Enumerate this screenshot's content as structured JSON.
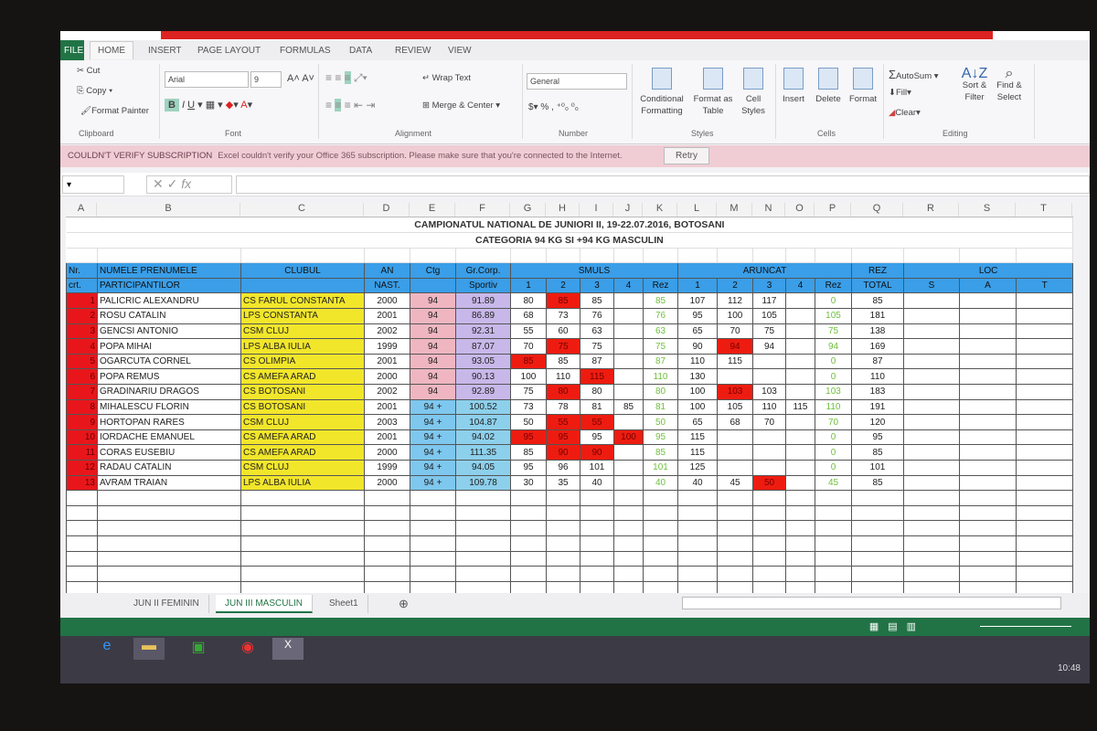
{
  "ribbon": {
    "file": "FILE",
    "tabs": [
      "HOME",
      "INSERT",
      "PAGE LAYOUT",
      "FORMULAS",
      "DATA",
      "REVIEW",
      "VIEW"
    ],
    "clipboard": {
      "cut": "Cut",
      "copy": "Copy",
      "format_painter": "Format Painter",
      "label": "Clipboard"
    },
    "font": {
      "name": "Arial",
      "size": "9",
      "label": "Font"
    },
    "alignment": {
      "wrap": "Wrap Text",
      "merge": "Merge & Center",
      "label": "Alignment"
    },
    "number": {
      "format": "General",
      "label": "Number"
    },
    "styles": {
      "conditional": "Conditional Formatting",
      "format_table": "Format as Table",
      "cell_styles": "Cell Styles",
      "label": "Styles"
    },
    "cells": {
      "insert": "Insert",
      "delete": "Delete",
      "format": "Format",
      "label": "Cells"
    },
    "editing": {
      "autosum": "AutoSum",
      "fill": "Fill",
      "clear": "Clear",
      "sort": "Sort & Filter",
      "find": "Find & Select",
      "label": "Editing"
    }
  },
  "message_bar": {
    "title": "COULDN'T VERIFY SUBSCRIPTION",
    "text": "Excel couldn't verify your Office 365 subscription. Please make sure that you're connected to the Internet.",
    "retry": "Retry"
  },
  "formula_bar": {
    "fx": "fx"
  },
  "columns": [
    "A",
    "B",
    "C",
    "D",
    "E",
    "F",
    "G",
    "H",
    "I",
    "J",
    "K",
    "L",
    "M",
    "N",
    "O",
    "P",
    "Q",
    "R",
    "S",
    "T"
  ],
  "sheet": {
    "title1": "CAMPIONATUL NATIONAL DE JUNIORI II, 19-22.07.2016, BOTOSANI",
    "title2": "CATEGORIA 94 KG SI +94 KG MASCULIN",
    "headers": {
      "nr1": "Nr.",
      "nr2": "crt.",
      "name1": "NUMELE PRENUMELE",
      "name2": "PARTICIPANTILOR",
      "club": "CLUBUL",
      "an1": "AN",
      "an2": "NAST.",
      "ctg": "Ctg",
      "bw1": "Gr.Corp.",
      "bw2": "Sportiv",
      "smuls": "SMULS",
      "aruncat": "ARUNCAT",
      "rez": "Rez",
      "rez_total1": "REZ",
      "rez_total2": "TOTAL",
      "loc": "LOC",
      "attempts": [
        "1",
        "2",
        "3",
        "4"
      ],
      "loc_cols": [
        "S",
        "A",
        "T"
      ]
    },
    "rows": [
      {
        "nr": "1",
        "name": "PALICRIC ALEXANDRU",
        "club": "CS FARUL CONSTANTA",
        "year": "2000",
        "cat": "94",
        "bw": "91.89",
        "sn": [
          "80",
          "85",
          "85",
          ""
        ],
        "sn_fail": [
          0,
          1,
          0,
          0
        ],
        "sn_rez": "85",
        "cj": [
          "107",
          "112",
          "117",
          ""
        ],
        "cj_fail": [
          0,
          0,
          0,
          0
        ],
        "cj_rez": "0",
        "total": "85"
      },
      {
        "nr": "2",
        "name": "ROSU CATALIN",
        "club": "LPS CONSTANTA",
        "year": "2001",
        "cat": "94",
        "bw": "86.89",
        "sn": [
          "68",
          "73",
          "76",
          ""
        ],
        "sn_fail": [
          0,
          0,
          0,
          0
        ],
        "sn_rez": "76",
        "cj": [
          "95",
          "100",
          "105",
          ""
        ],
        "cj_fail": [
          0,
          0,
          0,
          0
        ],
        "cj_rez": "105",
        "total": "181"
      },
      {
        "nr": "3",
        "name": "GENCSI ANTONIO",
        "club": "CSM CLUJ",
        "year": "2002",
        "cat": "94",
        "bw": "92.31",
        "sn": [
          "55",
          "60",
          "63",
          ""
        ],
        "sn_fail": [
          0,
          0,
          0,
          0
        ],
        "sn_rez": "63",
        "cj": [
          "65",
          "70",
          "75",
          ""
        ],
        "cj_fail": [
          0,
          0,
          0,
          0
        ],
        "cj_rez": "75",
        "total": "138"
      },
      {
        "nr": "4",
        "name": "POPA MIHAI",
        "club": "LPS ALBA IULIA",
        "year": "1999",
        "cat": "94",
        "bw": "87.07",
        "sn": [
          "70",
          "75",
          "75",
          ""
        ],
        "sn_fail": [
          0,
          1,
          0,
          0
        ],
        "sn_rez": "75",
        "cj": [
          "90",
          "94",
          "94",
          ""
        ],
        "cj_fail": [
          0,
          1,
          0,
          0
        ],
        "cj_rez": "94",
        "total": "169"
      },
      {
        "nr": "5",
        "name": "OGARCUTA CORNEL",
        "club": "CS OLIMPIA",
        "year": "2001",
        "cat": "94",
        "bw": "93.05",
        "sn": [
          "85",
          "85",
          "87",
          ""
        ],
        "sn_fail": [
          1,
          0,
          0,
          0
        ],
        "sn_rez": "87",
        "cj": [
          "110",
          "115",
          "",
          ""
        ],
        "cj_fail": [
          0,
          0,
          0,
          0
        ],
        "cj_rez": "0",
        "total": "87"
      },
      {
        "nr": "6",
        "name": "POPA REMUS",
        "club": "CS AMEFA ARAD",
        "year": "2000",
        "cat": "94",
        "bw": "90.13",
        "sn": [
          "100",
          "110",
          "115",
          ""
        ],
        "sn_fail": [
          0,
          0,
          1,
          0
        ],
        "sn_rez": "110",
        "cj": [
          "130",
          "",
          "",
          ""
        ],
        "cj_fail": [
          0,
          0,
          0,
          0
        ],
        "cj_rez": "0",
        "total": "110"
      },
      {
        "nr": "7",
        "name": "GRADINARIU DRAGOS",
        "club": "CS BOTOSANI",
        "year": "2002",
        "cat": "94",
        "bw": "92.89",
        "sn": [
          "75",
          "80",
          "80",
          ""
        ],
        "sn_fail": [
          0,
          1,
          0,
          0
        ],
        "sn_rez": "80",
        "cj": [
          "100",
          "103",
          "103",
          ""
        ],
        "cj_fail": [
          0,
          1,
          0,
          0
        ],
        "cj_rez": "103",
        "total": "183"
      },
      {
        "nr": "8",
        "name": "MIHALESCU FLORIN",
        "club": "CS BOTOSANI",
        "year": "2001",
        "cat": "94 +",
        "bw": "100.52",
        "sn": [
          "73",
          "78",
          "81",
          "85"
        ],
        "sn_fail": [
          0,
          0,
          0,
          0
        ],
        "sn_rez": "81",
        "cj": [
          "100",
          "105",
          "110",
          "115"
        ],
        "cj_fail": [
          0,
          0,
          0,
          0
        ],
        "cj_rez": "110",
        "total": "191"
      },
      {
        "nr": "9",
        "name": "HORTOPAN RARES",
        "club": "CSM CLUJ",
        "year": "2003",
        "cat": "94 +",
        "bw": "104.87",
        "sn": [
          "50",
          "55",
          "55",
          ""
        ],
        "sn_fail": [
          0,
          1,
          1,
          0
        ],
        "sn_rez": "50",
        "cj": [
          "65",
          "68",
          "70",
          ""
        ],
        "cj_fail": [
          0,
          0,
          0,
          0
        ],
        "cj_rez": "70",
        "total": "120"
      },
      {
        "nr": "10",
        "name": "IORDACHE EMANUEL",
        "club": "CS AMEFA ARAD",
        "year": "2001",
        "cat": "94 +",
        "bw": "94.02",
        "sn": [
          "95",
          "95",
          "95",
          "100"
        ],
        "sn_fail": [
          1,
          1,
          0,
          1
        ],
        "sn_rez": "95",
        "cj": [
          "115",
          "",
          "",
          ""
        ],
        "cj_fail": [
          0,
          0,
          0,
          0
        ],
        "cj_rez": "0",
        "total": "95"
      },
      {
        "nr": "11",
        "name": "CORAS EUSEBIU",
        "club": "CS AMEFA ARAD",
        "year": "2000",
        "cat": "94 +",
        "bw": "111.35",
        "sn": [
          "85",
          "90",
          "90",
          ""
        ],
        "sn_fail": [
          0,
          1,
          1,
          0
        ],
        "sn_rez": "85",
        "cj": [
          "115",
          "",
          "",
          ""
        ],
        "cj_fail": [
          0,
          0,
          0,
          0
        ],
        "cj_rez": "0",
        "total": "85"
      },
      {
        "nr": "12",
        "name": "RADAU CATALIN",
        "club": "CSM CLUJ",
        "year": "1999",
        "cat": "94 +",
        "bw": "94.05",
        "sn": [
          "95",
          "96",
          "101",
          ""
        ],
        "sn_fail": [
          0,
          0,
          0,
          0
        ],
        "sn_rez": "101",
        "cj": [
          "125",
          "",
          "",
          ""
        ],
        "cj_fail": [
          0,
          0,
          0,
          0
        ],
        "cj_rez": "0",
        "total": "101"
      },
      {
        "nr": "13",
        "name": "AVRAM TRAIAN",
        "club": "LPS ALBA IULIA",
        "year": "2000",
        "cat": "94 +",
        "bw": "109.78",
        "sn": [
          "30",
          "35",
          "40",
          ""
        ],
        "sn_fail": [
          0,
          0,
          0,
          0
        ],
        "sn_rez": "40",
        "cj": [
          "40",
          "45",
          "50",
          ""
        ],
        "cj_fail": [
          0,
          0,
          1,
          0
        ],
        "cj_rez": "45",
        "total": "85"
      }
    ]
  },
  "sheet_tabs": [
    "JUN II FEMININ",
    "JUN III MASCULIN",
    "Sheet1"
  ],
  "active_sheet": "JUN III MASCULIN",
  "taskbar": {
    "clock": "10:48",
    "apps": [
      "internet-explorer-icon",
      "file-explorer-icon",
      "store-icon",
      "chrome-icon",
      "excel-icon"
    ]
  },
  "colors": {
    "excel_green": "#217346",
    "fail_red": "#ee1c10",
    "header_blue": "#3a9ee8",
    "club_yellow": "#f2e62b",
    "rez_green": "#6fbf3c"
  }
}
